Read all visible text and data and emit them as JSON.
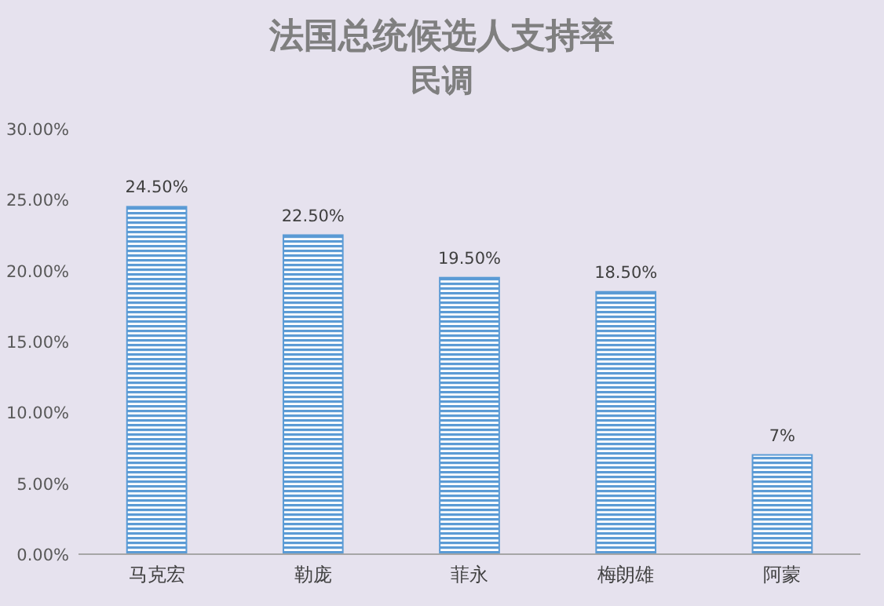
{
  "chart_data": {
    "type": "bar",
    "title": "法国总统候选人支持率",
    "subtitle": "民调",
    "categories": [
      "马克宏",
      "勒庞",
      "菲永",
      "梅朗雄",
      "阿蒙"
    ],
    "values": [
      24.5,
      22.5,
      19.5,
      18.5,
      7
    ],
    "value_labels": [
      "24.50%",
      "22.50%",
      "19.50%",
      "18.50%",
      "7%"
    ],
    "color": "#5b9bd5",
    "ylim": [
      0,
      30
    ],
    "yticks": [
      {
        "value": 0,
        "label": "0.00%"
      },
      {
        "value": 5,
        "label": "5.00%"
      },
      {
        "value": 10,
        "label": "10.00%"
      },
      {
        "value": 15,
        "label": "15.00%"
      },
      {
        "value": 20,
        "label": "20.00%"
      },
      {
        "value": 25,
        "label": "25.00%"
      },
      {
        "value": 30,
        "label": "30.00%"
      }
    ],
    "grid": false
  }
}
